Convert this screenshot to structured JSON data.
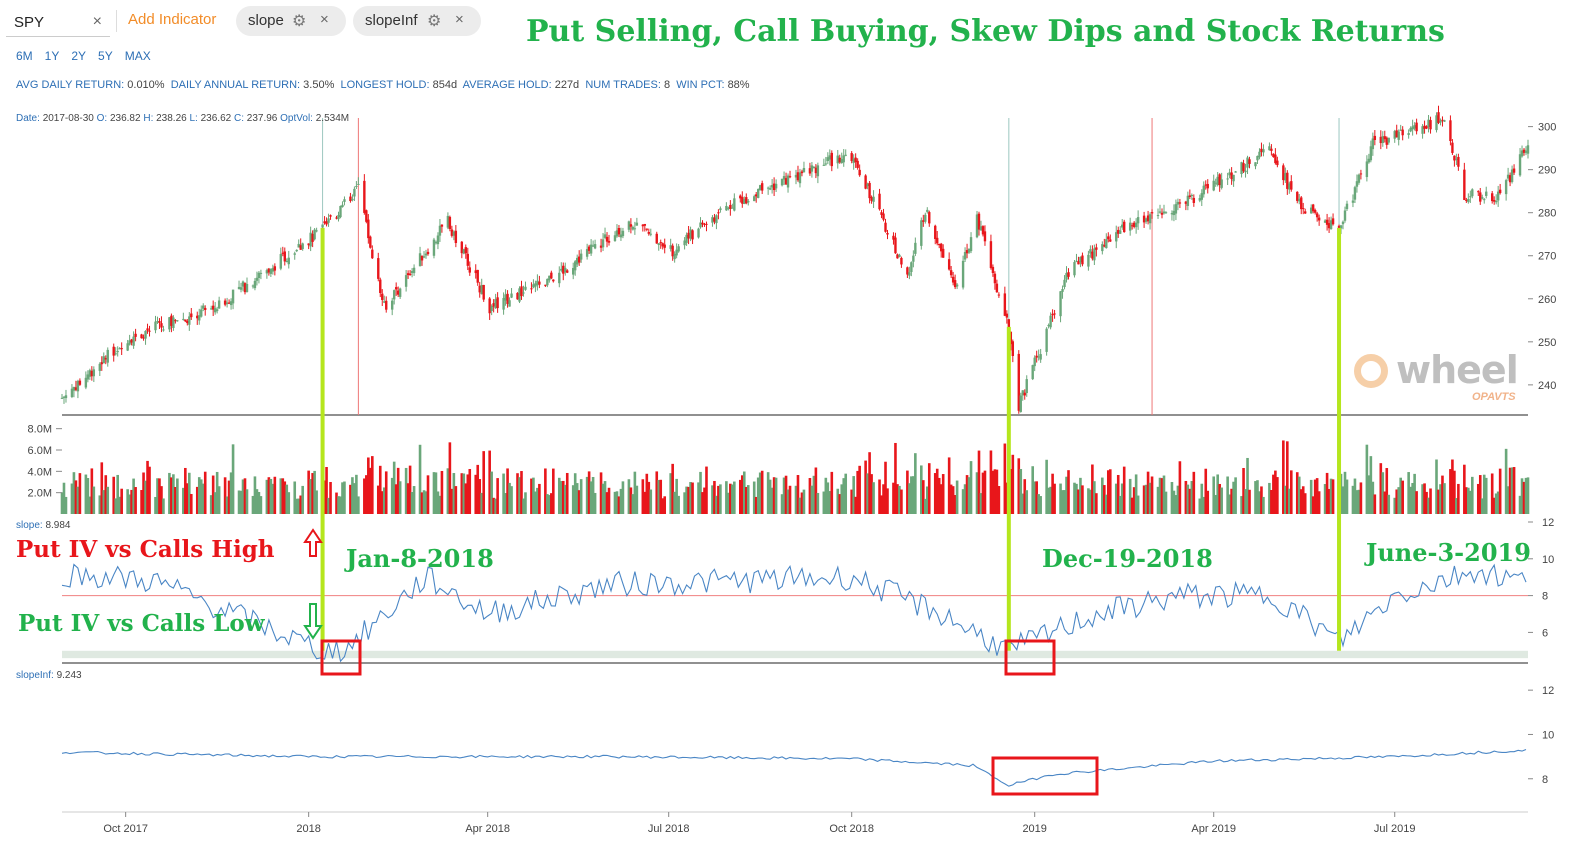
{
  "toolbar": {
    "ticker": "SPY",
    "add_indicator": "Add Indicator",
    "chips": [
      {
        "label": "slope",
        "icon": "gear-icon"
      },
      {
        "label": "slopeInf",
        "icon": "gear-icon"
      }
    ],
    "close_glyph": "×",
    "gear_glyph": "⚙"
  },
  "ranges": [
    "6M",
    "1Y",
    "2Y",
    "5Y",
    "MAX"
  ],
  "stats": {
    "avg_daily_label": "AVG DAILY RETURN:",
    "avg_daily": "0.010%",
    "annual_label": "DAILY ANNUAL RETURN:",
    "annual": "3.50%",
    "longest_label": "LONGEST HOLD:",
    "longest": "854d",
    "average_hold_label": "AVERAGE HOLD:",
    "average_hold": "227d",
    "trades_label": "NUM TRADES:",
    "trades": "8",
    "win_label": "WIN PCT:",
    "win": "88%"
  },
  "ohlc": {
    "date_label": "Date:",
    "date": "2017-08-30",
    "o_label": "O:",
    "o": "236.82",
    "h_label": "H:",
    "h": "238.26",
    "l_label": "L:",
    "l": "236.62",
    "c_label": "C:",
    "c": "237.96",
    "optvol_label": "OptVol:",
    "optvol": "2.534M"
  },
  "title": "Put Selling, Call Buying, Skew Dips and Stock Returns",
  "watermark": {
    "word": "wheel",
    "by": "OPAVTS"
  },
  "annotations": {
    "put_high": "Put IV vs Calls High",
    "put_low": "Put IV vs Calls Low",
    "date1": "Jan-8-2018",
    "date2": "Dec-19-2018",
    "date3": "June-3-2019"
  },
  "panes": {
    "slope_label": "slope:",
    "slope_value": "8.984",
    "slopeinf_label": "slopeInf:",
    "slopeinf_value": "9.243"
  },
  "colors": {
    "up": "#6aa77a",
    "down": "#e8161b",
    "line": "#4a86c5",
    "title": "#22b24c",
    "annot_red": "#e8161b",
    "annot_green": "#22b24c",
    "marker": "#b5e61d",
    "box": "#e8161b"
  },
  "chart_data": {
    "type": "line",
    "price_axis": {
      "ticks": [
        "300",
        "290",
        "280",
        "270",
        "260",
        "250",
        "240"
      ],
      "ylim": [
        233,
        302
      ]
    },
    "volume_axis": {
      "ticks": [
        "8.0M",
        "6.0M",
        "4.0M",
        "2.0M"
      ],
      "ylim": [
        0,
        9
      ]
    },
    "slope_axis": {
      "ticks": [
        "12",
        "10",
        "8",
        "6"
      ],
      "ylim": [
        4.5,
        12
      ]
    },
    "slopeinf_axis": {
      "ticks": [
        "12",
        "10",
        "8"
      ],
      "ylim": [
        6.5,
        13
      ]
    },
    "x_ticks": [
      "Oct 2017",
      "2018",
      "Apr 2018",
      "Jul 2018",
      "Oct 2018",
      "2019",
      "Apr 2019",
      "Jul 2019"
    ],
    "price_series": {
      "name": "SPY",
      "x": [
        "2017-08-30",
        "2017-10-02",
        "2017-11-15",
        "2018-01-08",
        "2018-01-26",
        "2018-02-08",
        "2018-03-12",
        "2018-04-02",
        "2018-05-01",
        "2018-06-12",
        "2018-07-02",
        "2018-08-01",
        "2018-09-20",
        "2018-10-03",
        "2018-10-29",
        "2018-11-07",
        "2018-11-23",
        "2018-12-03",
        "2018-12-19",
        "2018-12-24",
        "2019-01-18",
        "2019-02-15",
        "2019-03-20",
        "2019-04-30",
        "2019-05-13",
        "2019-06-03",
        "2019-06-20",
        "2019-07-26",
        "2019-08-05",
        "2019-08-23",
        "2019-09-06"
      ],
      "values": [
        237,
        251,
        258,
        276,
        286,
        258,
        278,
        258,
        264,
        278,
        271,
        282,
        292,
        292,
        265,
        281,
        263,
        279,
        253,
        235,
        266,
        277,
        283,
        295,
        282,
        276,
        296,
        302,
        284,
        284,
        296
      ]
    },
    "slope_series": {
      "name": "slope",
      "x": [
        "2017-08-30",
        "2017-10-15",
        "2017-11-20",
        "2018-01-08",
        "2018-01-20",
        "2018-03-01",
        "2018-04-01",
        "2018-06-01",
        "2018-08-01",
        "2018-10-01",
        "2018-11-15",
        "2018-12-19",
        "2019-02-01",
        "2019-03-15",
        "2019-05-01",
        "2019-06-03",
        "2019-07-01",
        "2019-08-10",
        "2019-09-06"
      ],
      "values": [
        9.2,
        8.8,
        7.2,
        5.0,
        5.1,
        9.0,
        7.0,
        8.6,
        8.8,
        9.0,
        7.0,
        5.0,
        7.0,
        8.0,
        8.0,
        5.5,
        8.0,
        9.4,
        8.7
      ]
    },
    "slopeinf_series": {
      "name": "slopeInf",
      "x": [
        "2017-08-30",
        "2018-01-01",
        "2018-06-01",
        "2018-10-01",
        "2018-12-01",
        "2018-12-19",
        "2019-01-10",
        "2019-04-01",
        "2019-07-01",
        "2019-09-06"
      ],
      "values": [
        9.2,
        9.0,
        9.0,
        8.9,
        8.6,
        7.7,
        8.2,
        8.8,
        9.0,
        9.3
      ]
    },
    "signals": [
      {
        "date": "2018-01-08",
        "type": "buy"
      },
      {
        "date": "2018-12-19",
        "type": "buy"
      },
      {
        "date": "2019-06-03",
        "type": "buy"
      }
    ],
    "exits": [
      "2018-01-26",
      "2019-03-01"
    ],
    "slope_threshold": 8,
    "grid": false
  }
}
